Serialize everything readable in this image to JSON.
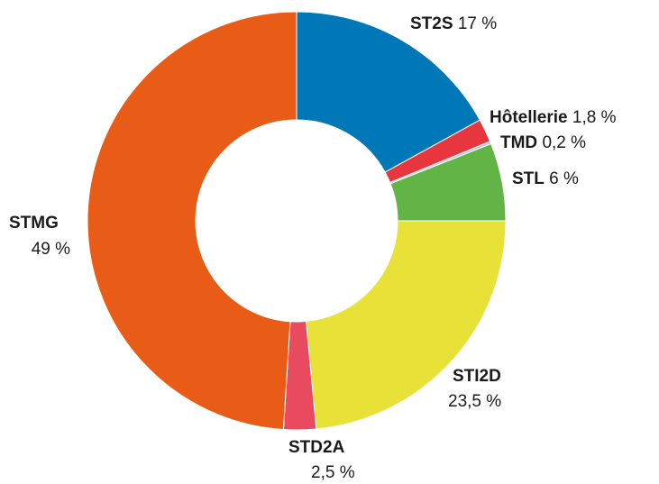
{
  "chart_data": {
    "type": "donut",
    "categories": [
      "ST2S",
      "Hôtellerie",
      "TMD",
      "STL",
      "STI2D",
      "STD2A",
      "STMG"
    ],
    "values": [
      17,
      1.8,
      0.2,
      6,
      23.5,
      2.5,
      49
    ],
    "value_labels": [
      "17 %",
      "1,8 %",
      "0,2 %",
      "6 %",
      "23,5 %",
      "2,5 %",
      "49 %"
    ],
    "colors": [
      "#0077b6",
      "#e8363e",
      "#b9c9d9",
      "#62b446",
      "#e7e138",
      "#e84a5f",
      "#e95c18"
    ]
  }
}
